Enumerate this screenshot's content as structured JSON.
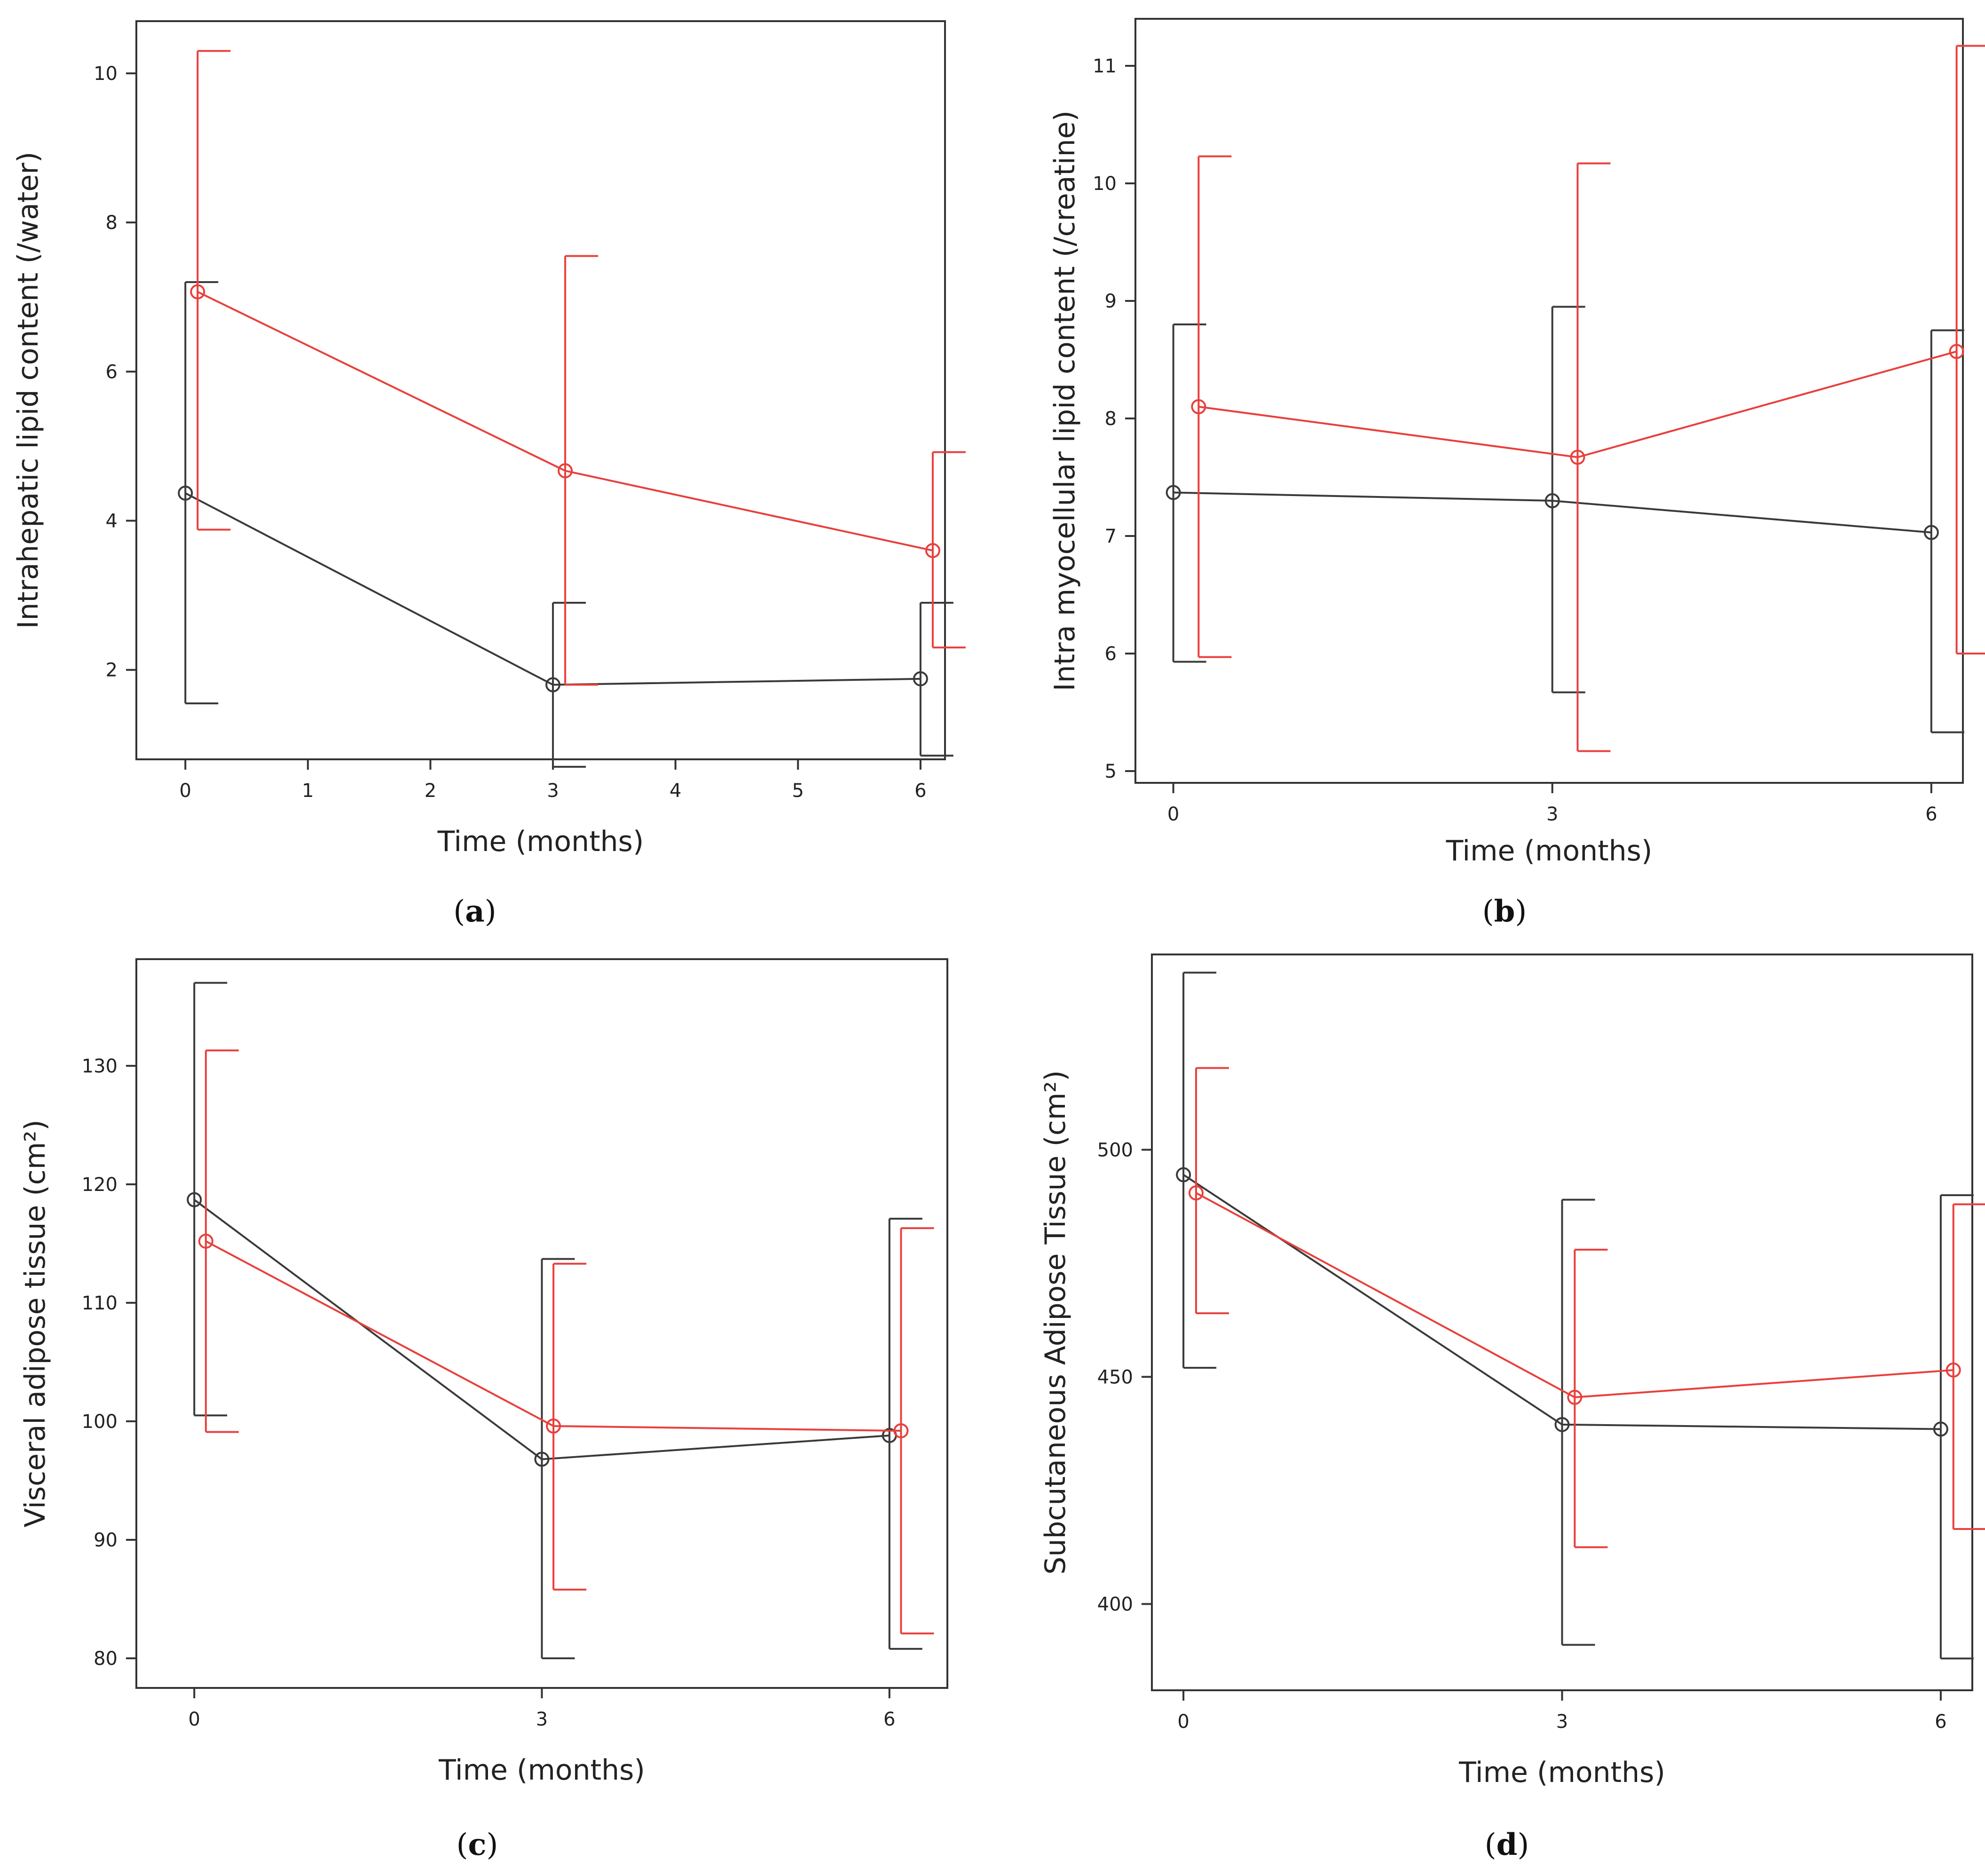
{
  "colors": {
    "control": "#3a3a3a",
    "treatment": "#e8403c"
  },
  "chart_data": [
    {
      "id": "a",
      "type": "line",
      "panel_label": "a",
      "xlabel": "Time (months)",
      "ylabel": "Intrahepatic lipid content (/water)",
      "xlim": [
        -0.4,
        6.2
      ],
      "ylim": [
        0.8,
        10.7
      ],
      "xticks": [
        0,
        1,
        2,
        3,
        4,
        5,
        6
      ],
      "yticks": [
        2,
        4,
        6,
        8,
        10
      ],
      "x_offset": 0.1,
      "series": [
        {
          "name": "black",
          "color": "#3a3a3a",
          "x": [
            0,
            3,
            6
          ],
          "y": [
            4.37,
            1.8,
            1.88
          ],
          "lower": [
            1.55,
            0.7,
            0.85
          ],
          "upper": [
            7.2,
            2.9,
            2.9
          ]
        },
        {
          "name": "red",
          "color": "#e8403c",
          "x": [
            0,
            3,
            6
          ],
          "y": [
            7.07,
            4.67,
            3.6
          ],
          "lower": [
            3.88,
            1.8,
            2.3
          ],
          "upper": [
            10.3,
            7.55,
            4.92
          ]
        }
      ]
    },
    {
      "id": "b",
      "type": "line",
      "panel_label": "b",
      "xlabel": "Time (months)",
      "ylabel": "Intra myocellular lipid content (/creatine)",
      "xlim": [
        -0.3,
        6.25
      ],
      "ylim": [
        4.9,
        11.4
      ],
      "xticks": [
        0,
        3,
        6
      ],
      "yticks": [
        5,
        6,
        7,
        8,
        9,
        10,
        11
      ],
      "x_offset": 0.2,
      "series": [
        {
          "name": "black",
          "color": "#3a3a3a",
          "x": [
            0,
            3,
            6
          ],
          "y": [
            7.37,
            7.3,
            7.03
          ],
          "lower": [
            5.93,
            5.67,
            5.33
          ],
          "upper": [
            8.8,
            8.95,
            8.75
          ]
        },
        {
          "name": "red",
          "color": "#e8403c",
          "x": [
            0,
            3,
            6
          ],
          "y": [
            8.1,
            7.67,
            8.57
          ],
          "lower": [
            5.97,
            5.17,
            6.0
          ],
          "upper": [
            10.23,
            10.17,
            11.17
          ]
        }
      ]
    },
    {
      "id": "c",
      "type": "line",
      "panel_label": "c",
      "xlabel": "Time (months)",
      "ylabel": "Visceral adipose tissue (cm²)",
      "xlim": [
        -0.5,
        6.5
      ],
      "ylim": [
        77.5,
        139
      ],
      "xticks": [
        0,
        3,
        6
      ],
      "yticks": [
        80,
        90,
        100,
        110,
        120,
        130
      ],
      "x_offset": 0.1,
      "series": [
        {
          "name": "black",
          "color": "#3a3a3a",
          "x": [
            0,
            3,
            6
          ],
          "y": [
            118.7,
            96.8,
            98.8
          ],
          "lower": [
            100.5,
            80.0,
            80.8
          ],
          "upper": [
            137.0,
            113.7,
            117.1
          ]
        },
        {
          "name": "red",
          "color": "#e8403c",
          "x": [
            0,
            3,
            6
          ],
          "y": [
            115.2,
            99.6,
            99.2
          ],
          "lower": [
            99.1,
            85.8,
            82.1
          ],
          "upper": [
            131.3,
            113.3,
            116.3
          ]
        }
      ]
    },
    {
      "id": "d",
      "type": "line",
      "panel_label": "d",
      "xlabel": "Time (months)",
      "ylabel": "Subcutaneous Adipose Tissue (cm²)",
      "xlim": [
        -0.25,
        6.25
      ],
      "ylim": [
        381,
        543
      ],
      "xticks": [
        0,
        3,
        6
      ],
      "yticks": [
        400,
        450,
        500
      ],
      "x_offset": 0.1,
      "series": [
        {
          "name": "black",
          "color": "#3a3a3a",
          "x": [
            0,
            3,
            6
          ],
          "y": [
            494.5,
            439.5,
            438.5
          ],
          "lower": [
            452,
            391,
            388
          ],
          "upper": [
            539,
            489,
            490
          ]
        },
        {
          "name": "red",
          "color": "#e8403c",
          "x": [
            0,
            3,
            6
          ],
          "y": [
            490.5,
            445.5,
            451.5
          ],
          "lower": [
            464,
            412.5,
            416.5
          ],
          "upper": [
            518,
            478,
            488
          ]
        }
      ]
    }
  ]
}
